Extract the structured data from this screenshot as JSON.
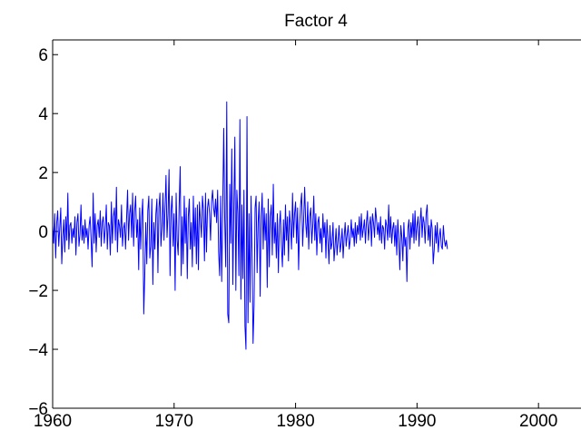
{
  "chart_data": {
    "type": "line",
    "title": "Factor 4",
    "xlabel": "",
    "ylabel": "",
    "xlim": [
      1960,
      2003.5
    ],
    "ylim": [
      -6,
      6.5
    ],
    "xticks": [
      1960,
      1970,
      1980,
      1990,
      2000
    ],
    "xtick_labels": [
      "1960",
      "1970",
      "1980",
      "1990",
      "2000"
    ],
    "yticks": [
      -6,
      -4,
      -2,
      0,
      2,
      4,
      6
    ],
    "ytick_labels": [
      "−6",
      "−4",
      "−2",
      "0",
      "2",
      "4",
      "6"
    ],
    "grid": false,
    "series_color": "#0000ff",
    "x_start": 1960.0,
    "x_step": 0.083333,
    "series": [
      {
        "values": [
          0.2,
          -0.4,
          0.6,
          -0.9,
          0.3,
          0.7,
          -0.5,
          0.1,
          0.8,
          -1.1,
          -0.2,
          0.4,
          -0.7,
          0.5,
          -0.3,
          1.3,
          -0.6,
          0.2,
          0.3,
          -0.4,
          0.1,
          -0.2,
          0.5,
          -0.8,
          0.3,
          0.6,
          -0.5,
          -0.1,
          0.9,
          -0.3,
          0.2,
          -0.4,
          0.4,
          -0.2,
          0.1,
          -0.6,
          0.2,
          0.5,
          -0.3,
          -1.2,
          1.3,
          -0.4,
          0.6,
          -0.7,
          0.2,
          0.4,
          -0.2,
          0.7,
          -0.5,
          0.3,
          0.5,
          -0.4,
          0.1,
          0.9,
          -0.6,
          0.3,
          0.2,
          -0.8,
          1.0,
          -0.4,
          0.5,
          0.8,
          -0.3,
          1.5,
          -0.7,
          0.4,
          0.2,
          -0.2,
          0.9,
          -0.5,
          0.1,
          0.3,
          -0.6,
          0.4,
          1.4,
          -0.3,
          0.6,
          0.9,
          -0.2,
          1.3,
          -0.5,
          0.7,
          1.2,
          -0.2,
          0.4,
          -1.3,
          0.8,
          -0.6,
          0.5,
          1.1,
          -2.8,
          -1.5,
          0.3,
          -1.1,
          0.7,
          1.2,
          -0.9,
          -0.5,
          1.1,
          -1.8,
          0.3,
          -0.6,
          0.6,
          1.1,
          -1.4,
          0.8,
          1.3,
          -0.5,
          0.1,
          1.3,
          -0.3,
          0.8,
          1.9,
          -0.2,
          0.6,
          2.1,
          -1.5,
          0.7,
          1.2,
          -0.5,
          0.6,
          -2.0,
          1.3,
          -0.3,
          -0.8,
          0.9,
          2.2,
          -1.5,
          0.5,
          -1.1,
          1.2,
          -0.4,
          0.8,
          -1.6,
          0.5,
          1.1,
          -0.6,
          0.3,
          -1.2,
          1.2,
          -0.5,
          0.8,
          -1.1,
          0.9,
          -1.3,
          1.0,
          0.4,
          -0.2,
          1.2,
          0.7,
          -1.0,
          1.3,
          -0.7,
          0.8,
          1.1,
          0.6,
          -0.3,
          1.0,
          1.4,
          0.8,
          0.5,
          1.1,
          0.3,
          1.4,
          -0.7,
          -1.5,
          1.2,
          -1.7,
          0.7,
          3.5,
          0.4,
          -1.2,
          4.4,
          -2.8,
          -3.1,
          1.6,
          -0.4,
          2.8,
          -1.8,
          0.8,
          3.2,
          -2.0,
          1.4,
          0.6,
          -1.5,
          3.8,
          -2.3,
          0.9,
          -1.6,
          1.4,
          -3.2,
          -4.0,
          3.9,
          -3.1,
          0.6,
          -2.4,
          1.2,
          -0.7,
          -3.8,
          -2.5,
          0.8,
          1.2,
          -1.4,
          0.3,
          1.0,
          -2.2,
          0.5,
          1.3,
          -0.6,
          0.8,
          -0.3,
          0.6,
          -1.9,
          1.1,
          -1.2,
          0.5,
          0.9,
          -0.8,
          1.6,
          -0.4,
          0.3,
          -0.9,
          0.6,
          -1.4,
          0.2,
          0.7,
          -0.5,
          -1.2,
          0.4,
          -0.8,
          0.9,
          -0.3,
          0.5,
          -1.0,
          0.7,
          0.2,
          -0.6,
          1.3,
          -0.2,
          0.6,
          1.0,
          -0.4,
          0.8,
          -1.3,
          0.2,
          0.9,
          1.3,
          -0.5,
          0.4,
          1.5,
          0.3,
          -0.2,
          1.0,
          -0.6,
          0.5,
          0.8,
          -0.4,
          0.2,
          1.2,
          -0.3,
          0.6,
          -0.8,
          0.3,
          0.5,
          -0.4,
          0.1,
          -0.7,
          0.6,
          -0.2,
          0.3,
          -0.9,
          0.4,
          -0.3,
          -1.1,
          0.2,
          -0.6,
          -0.4,
          0.3,
          -1.0,
          -0.5,
          0.1,
          -0.8,
          -0.3,
          0.2,
          -0.7,
          -0.4,
          0.1,
          -0.9,
          -0.2,
          0.3,
          -0.5,
          -0.1,
          0.2,
          -0.6,
          -0.3,
          0.4,
          -0.2,
          0.1,
          -0.5,
          0.3,
          -0.4,
          0.2,
          -0.1,
          0.5,
          -0.3,
          0.6,
          -0.2,
          0.1,
          0.4,
          -0.4,
          0.3,
          0.7,
          -0.3,
          0.2,
          0.5,
          -0.5,
          0.6,
          0.3,
          -0.2,
          0.8,
          0.4,
          -0.1,
          0.3,
          -0.3,
          0.5,
          -0.4,
          0.2,
          0.1,
          -0.6,
          0.4,
          0.2,
          -0.3,
          0.9,
          -0.2,
          0.5,
          -0.4,
          0.1,
          0.3,
          -0.5,
          0.2,
          -0.8,
          0.4,
          -0.3,
          -1.3,
          0.2,
          -0.2,
          -1.0,
          0.3,
          -0.5,
          -0.2,
          -1.7,
          0.1,
          0.4,
          -0.6,
          0.3,
          -0.2,
          0.6,
          -0.4,
          0.7,
          -0.3,
          0.2,
          0.5,
          -0.5,
          0.3,
          0.8,
          -0.2,
          0.5,
          0.3,
          -0.4,
          0.6,
          0.9,
          -0.3,
          0.2,
          -0.5,
          0.4,
          0.1,
          -1.1,
          -0.6,
          0.2,
          -0.4,
          0.3,
          -0.7,
          -0.2,
          0.1,
          -0.5,
          -0.6,
          0.2,
          -0.3,
          -0.5,
          -0.3,
          -0.6
        ]
      }
    ]
  }
}
